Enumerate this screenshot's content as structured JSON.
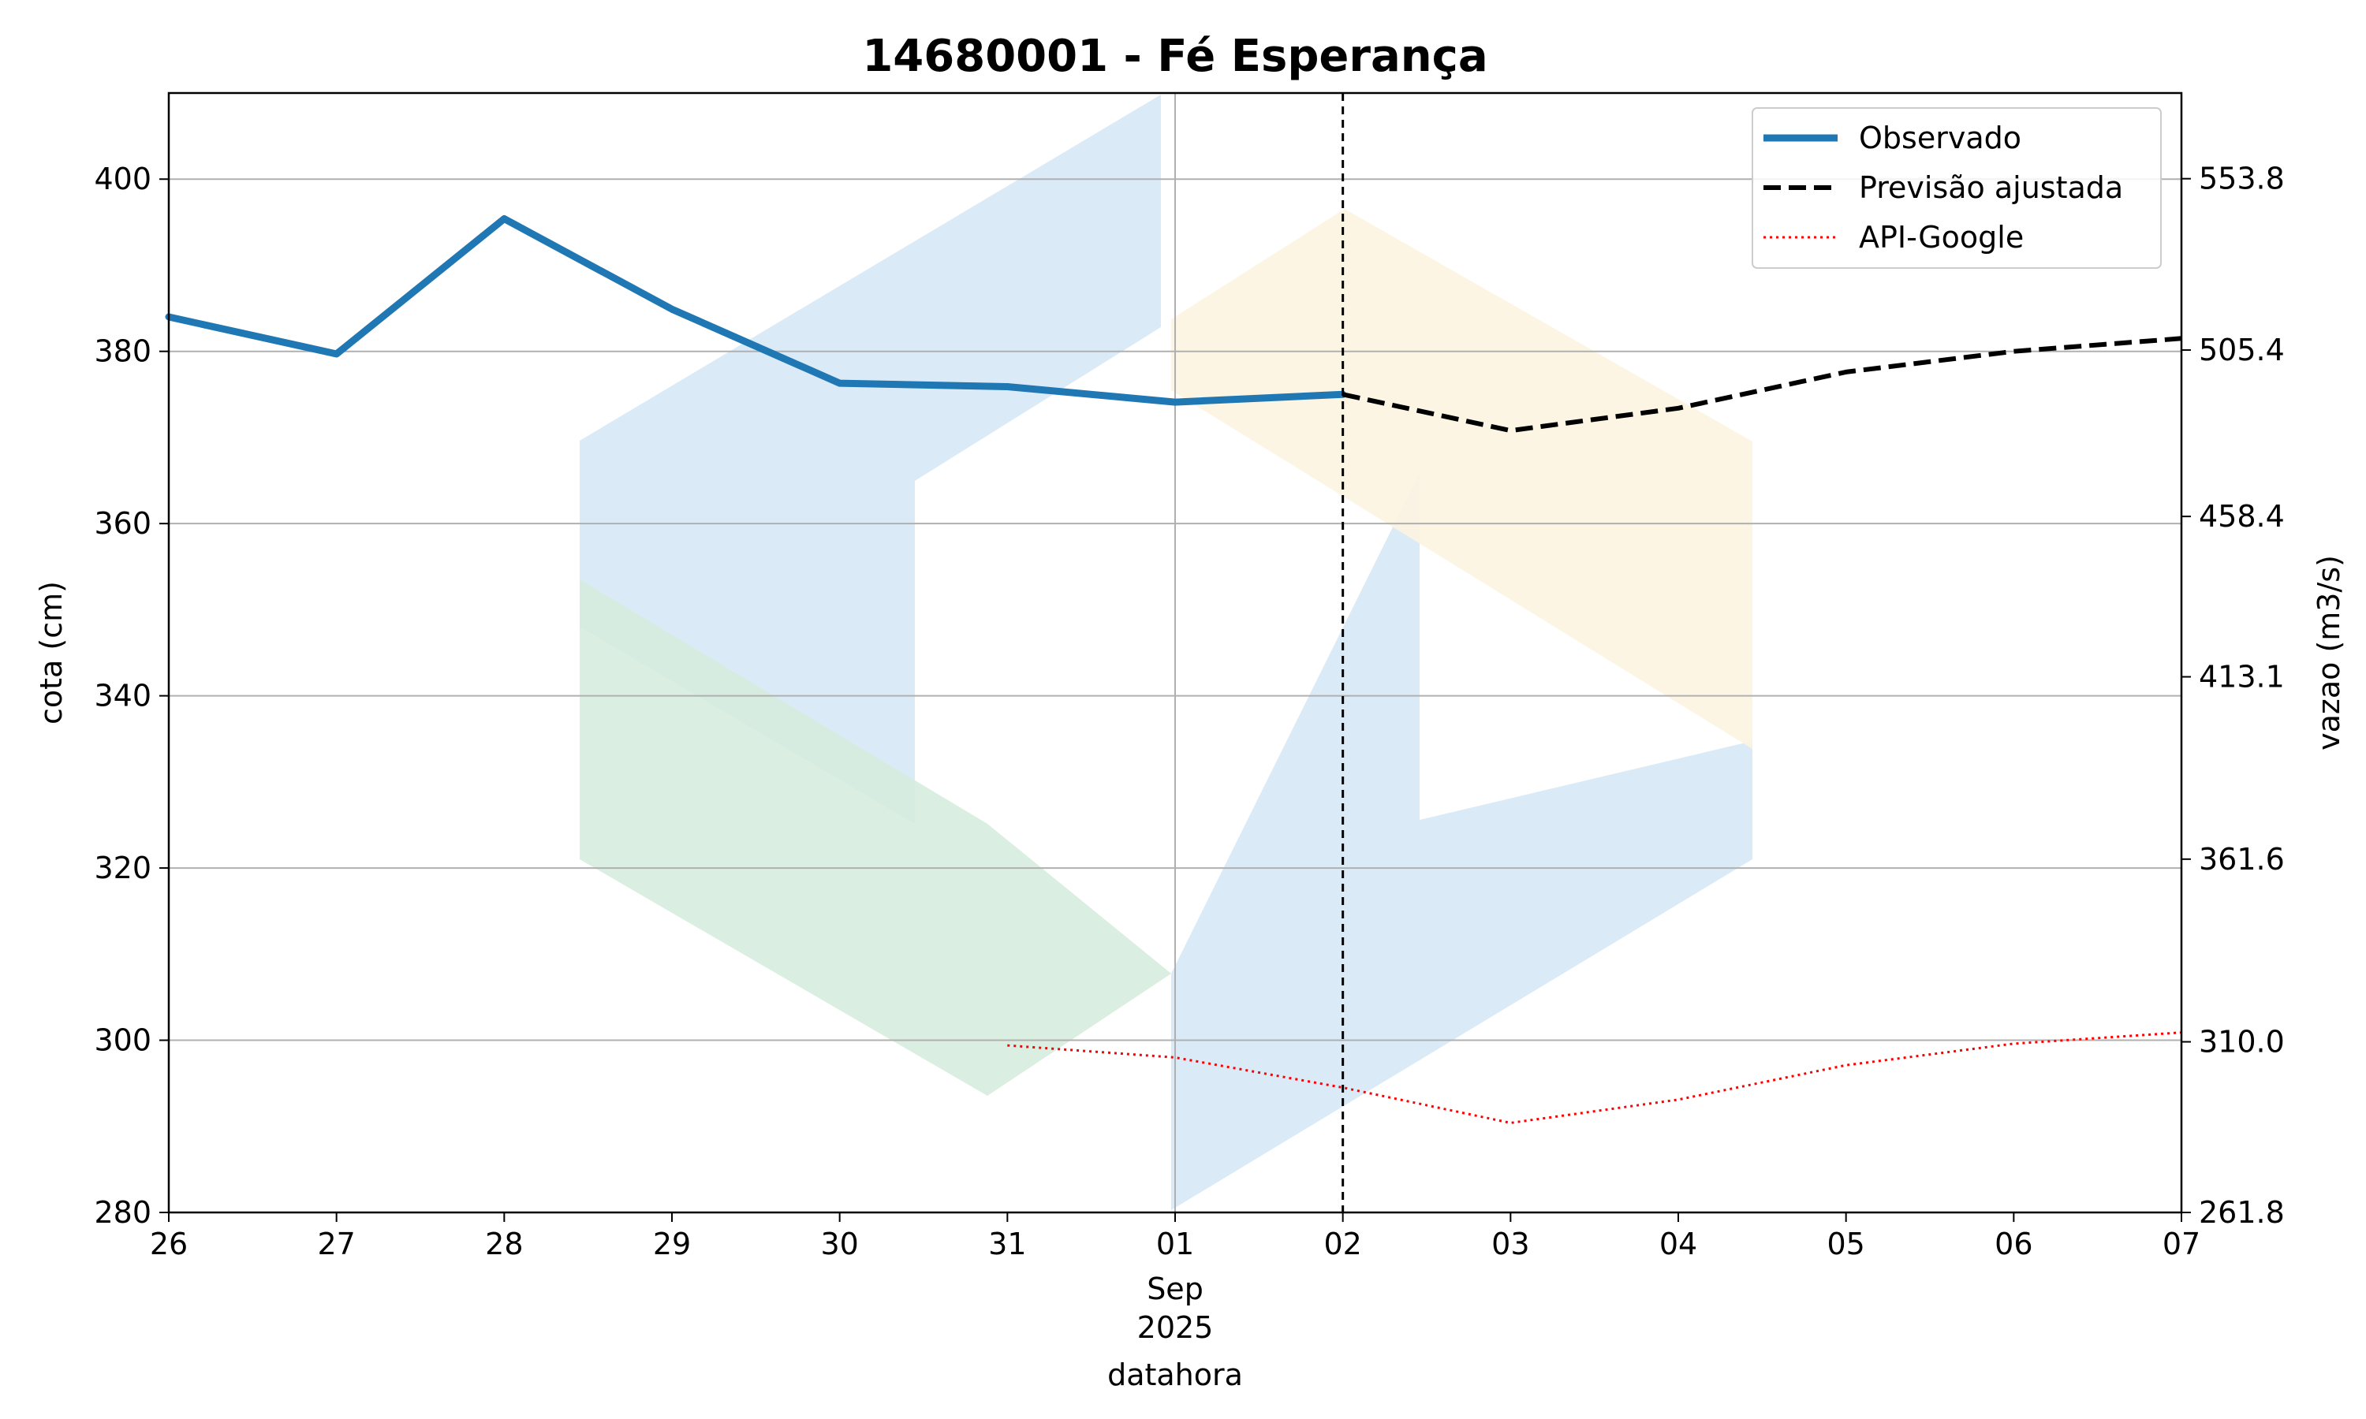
{
  "chart_data": {
    "type": "line",
    "title": "14680001 - Fé Esperança",
    "xlabel": "datahora",
    "ylabel": "cota (cm)",
    "ylabel_right": "vazao (m3/s)",
    "x_ticks": [
      "26",
      "27",
      "28",
      "29",
      "30",
      "31",
      "01",
      "02",
      "03",
      "04",
      "05",
      "06",
      "07"
    ],
    "x_month_label": "Sep",
    "x_year_label": "2025",
    "x_dates": [
      "2025-08-26",
      "2025-08-27",
      "2025-08-28",
      "2025-08-29",
      "2025-08-30",
      "2025-08-31",
      "2025-09-01",
      "2025-09-02",
      "2025-09-03",
      "2025-09-04",
      "2025-09-05",
      "2025-09-06",
      "2025-09-07"
    ],
    "xlim": [
      "2025-08-26",
      "2025-09-07"
    ],
    "ylim": [
      280,
      410
    ],
    "yticks": [
      280,
      300,
      320,
      340,
      360,
      380,
      400
    ],
    "ylim_right": [
      261.8,
      578.0
    ],
    "yticks_right": [
      "261.8",
      "310.0",
      "361.6",
      "413.1",
      "458.4",
      "505.4",
      "553.8"
    ],
    "forecast_marker_date": "2025-09-02",
    "grid": true,
    "legend_position": "top-right",
    "series": [
      {
        "name": "Observado",
        "color": "#1f77b4",
        "style": "solid",
        "x": [
          "2025-08-26",
          "2025-08-27",
          "2025-08-28",
          "2025-08-29",
          "2025-08-30",
          "2025-08-31",
          "2025-09-01",
          "2025-09-02"
        ],
        "y": [
          384.0,
          379.7,
          395.4,
          384.9,
          376.3,
          375.9,
          374.1,
          375.0
        ]
      },
      {
        "name": "Previsão ajustada",
        "color": "#000000",
        "style": "dashed",
        "x": [
          "2025-09-02",
          "2025-09-03",
          "2025-09-04",
          "2025-09-05",
          "2025-09-06",
          "2025-09-07"
        ],
        "y": [
          375.0,
          370.8,
          373.4,
          377.6,
          380.0,
          381.5
        ]
      },
      {
        "name": "API-Google",
        "color": "#ff0000",
        "style": "dotted",
        "x": [
          "2025-08-31",
          "2025-09-01",
          "2025-09-02",
          "2025-09-03",
          "2025-09-04",
          "2025-09-05",
          "2025-09-06",
          "2025-09-07"
        ],
        "y": [
          299.4,
          298.0,
          294.5,
          290.4,
          293.1,
          297.1,
          299.6,
          300.9
        ]
      }
    ]
  }
}
